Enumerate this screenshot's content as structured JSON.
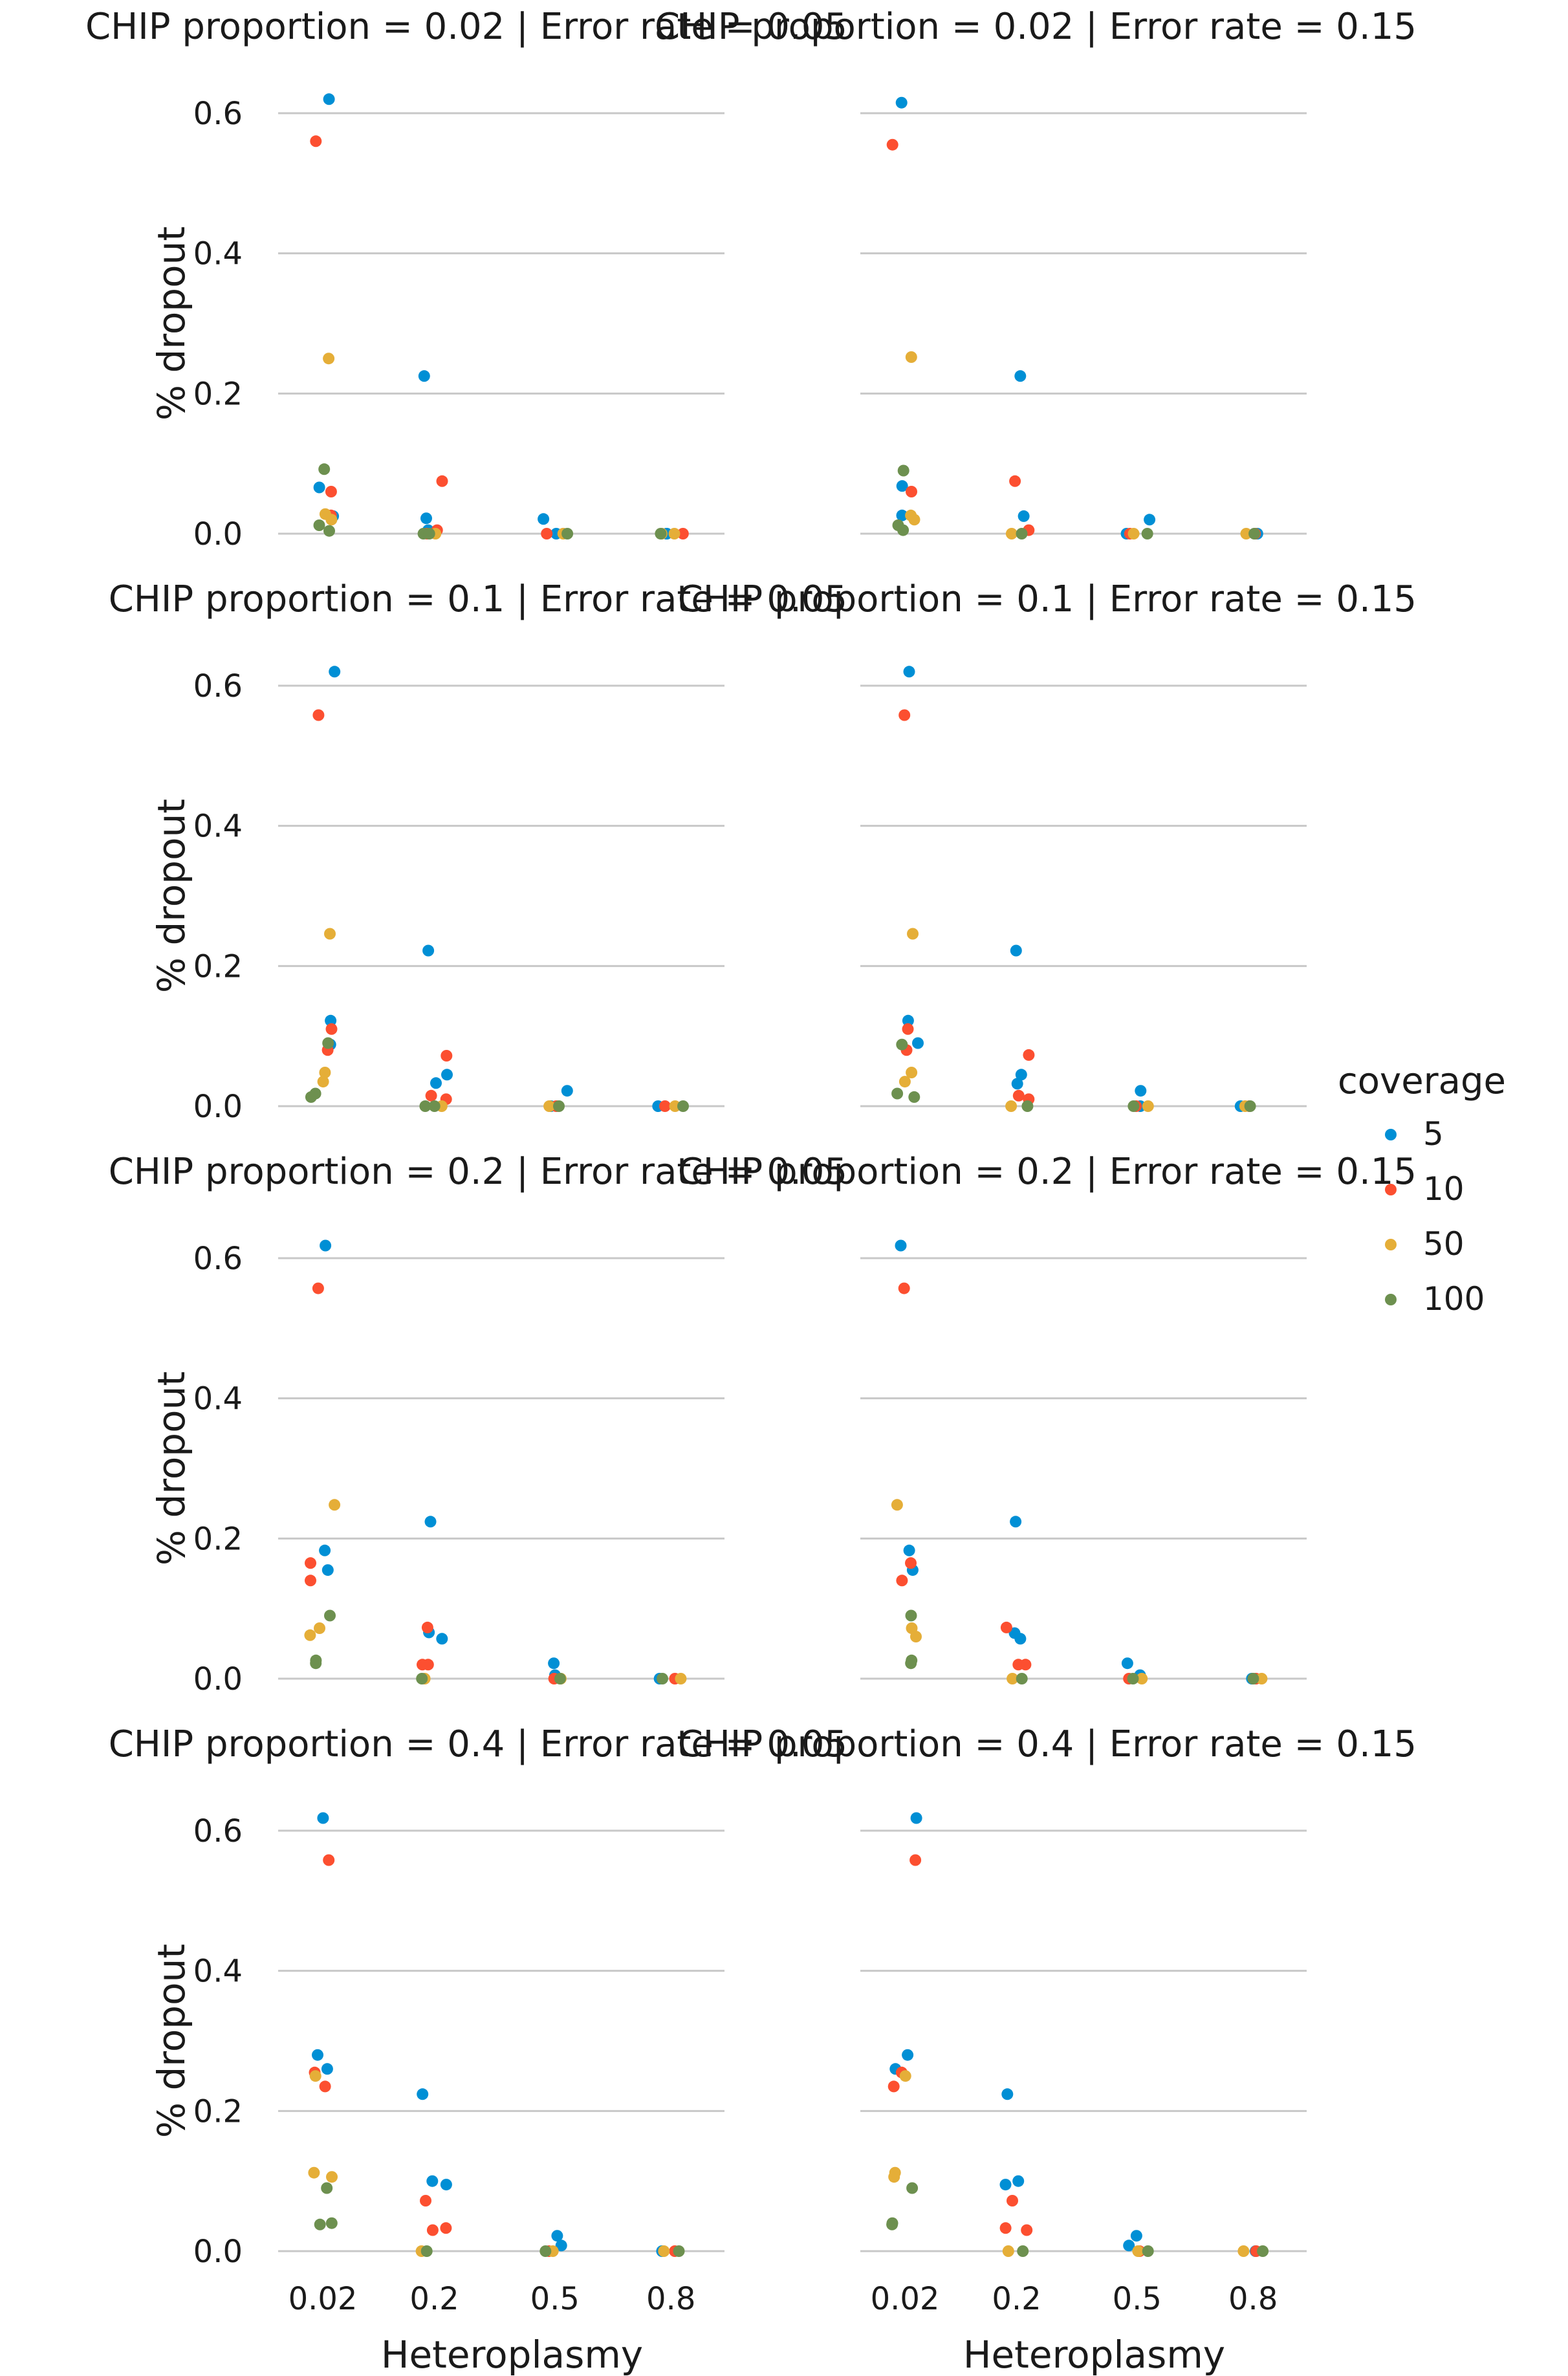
{
  "chart_data": {
    "type": "scatter",
    "y_label": "% dropout",
    "x_label": "Heteroplasmy",
    "categories": [
      "0.02",
      "0.2",
      "0.5",
      "0.8"
    ],
    "ylim": [
      0,
      0.62
    ],
    "y_ticks": [
      0.0,
      0.2,
      0.4,
      0.6
    ],
    "y_tick_labels": [
      "0.0",
      "0.2",
      "0.4",
      "0.6"
    ],
    "grid": "horizontal",
    "legend": {
      "title": "coverage",
      "placement": "right",
      "entries": [
        {
          "label": "5",
          "color": "#008fd5"
        },
        {
          "label": "10",
          "color": "#fc4f30"
        },
        {
          "label": "50",
          "color": "#e5ae38"
        },
        {
          "label": "100",
          "color": "#6d904f"
        }
      ]
    },
    "panels": [
      {
        "title": "CHIP proportion = 0.02 | Error rate = 0.05",
        "points": {
          "5": [
            [
              0,
              0.62
            ],
            [
              0,
              0.066
            ],
            [
              0,
              0.025
            ],
            [
              1,
              0.225
            ],
            [
              1,
              0.022
            ],
            [
              1,
              0.005
            ],
            [
              2,
              0.021
            ],
            [
              2,
              0.0
            ],
            [
              3,
              0.0
            ],
            [
              3,
              0.0
            ]
          ],
          "10": [
            [
              0,
              0.56
            ],
            [
              0,
              0.06
            ],
            [
              0,
              0.026
            ],
            [
              1,
              0.075
            ],
            [
              1,
              0.005
            ],
            [
              1,
              0.0
            ],
            [
              2,
              0.0
            ],
            [
              3,
              0.0
            ]
          ],
          "50": [
            [
              0,
              0.25
            ],
            [
              0,
              0.028
            ],
            [
              0,
              0.02
            ],
            [
              1,
              0.0
            ],
            [
              2,
              0.0
            ],
            [
              3,
              0.0
            ],
            [
              3,
              0.0
            ]
          ],
          "100": [
            [
              0,
              0.092
            ],
            [
              0,
              0.012
            ],
            [
              0,
              0.004
            ],
            [
              1,
              0.0
            ],
            [
              1,
              0.0
            ],
            [
              2,
              0.0
            ],
            [
              3,
              0.0
            ]
          ]
        }
      },
      {
        "title": "CHIP proportion = 0.02 | Error rate = 0.15",
        "points": {
          "5": [
            [
              0,
              0.615
            ],
            [
              0,
              0.068
            ],
            [
              0,
              0.026
            ],
            [
              1,
              0.225
            ],
            [
              1,
              0.025
            ],
            [
              2,
              0.02
            ],
            [
              2,
              0.0
            ],
            [
              3,
              0.0
            ]
          ],
          "10": [
            [
              0,
              0.555
            ],
            [
              0,
              0.06
            ],
            [
              1,
              0.075
            ],
            [
              1,
              0.005
            ],
            [
              2,
              0.0
            ],
            [
              3,
              0.0
            ]
          ],
          "50": [
            [
              0,
              0.252
            ],
            [
              0,
              0.026
            ],
            [
              0,
              0.02
            ],
            [
              1,
              0.0
            ],
            [
              2,
              0.0
            ],
            [
              3,
              0.0
            ]
          ],
          "100": [
            [
              0,
              0.09
            ],
            [
              0,
              0.012
            ],
            [
              0,
              0.005
            ],
            [
              1,
              0.0
            ],
            [
              2,
              0.0
            ],
            [
              3,
              0.0
            ]
          ]
        }
      },
      {
        "title": "CHIP proportion = 0.1 | Error rate = 0.05",
        "points": {
          "5": [
            [
              0,
              0.62
            ],
            [
              0,
              0.122
            ],
            [
              0,
              0.088
            ],
            [
              1,
              0.222
            ],
            [
              1,
              0.045
            ],
            [
              1,
              0.033
            ],
            [
              2,
              0.022
            ],
            [
              2,
              0.0
            ],
            [
              3,
              0.0
            ]
          ],
          "10": [
            [
              0,
              0.558
            ],
            [
              0,
              0.11
            ],
            [
              0,
              0.08
            ],
            [
              1,
              0.072
            ],
            [
              1,
              0.015
            ],
            [
              1,
              0.01
            ],
            [
              2,
              0.0
            ],
            [
              3,
              0.0
            ]
          ],
          "50": [
            [
              0,
              0.246
            ],
            [
              0,
              0.048
            ],
            [
              0,
              0.035
            ],
            [
              1,
              0.0
            ],
            [
              2,
              0.0
            ],
            [
              3,
              0.0
            ]
          ],
          "100": [
            [
              0,
              0.09
            ],
            [
              0,
              0.018
            ],
            [
              0,
              0.013
            ],
            [
              1,
              0.0
            ],
            [
              1,
              0.0
            ],
            [
              2,
              0.0
            ],
            [
              3,
              0.0
            ]
          ]
        }
      },
      {
        "title": "CHIP proportion = 0.1 | Error rate = 0.15",
        "points": {
          "5": [
            [
              0,
              0.62
            ],
            [
              0,
              0.122
            ],
            [
              0,
              0.09
            ],
            [
              1,
              0.222
            ],
            [
              1,
              0.045
            ],
            [
              1,
              0.032
            ],
            [
              2,
              0.022
            ],
            [
              2,
              0.0
            ],
            [
              3,
              0.0
            ]
          ],
          "10": [
            [
              0,
              0.558
            ],
            [
              0,
              0.11
            ],
            [
              0,
              0.08
            ],
            [
              1,
              0.073
            ],
            [
              1,
              0.015
            ],
            [
              1,
              0.01
            ],
            [
              2,
              0.0
            ],
            [
              3,
              0.0
            ]
          ],
          "50": [
            [
              0,
              0.246
            ],
            [
              0,
              0.048
            ],
            [
              0,
              0.035
            ],
            [
              1,
              0.0
            ],
            [
              2,
              0.0
            ],
            [
              3,
              0.0
            ]
          ],
          "100": [
            [
              0,
              0.088
            ],
            [
              0,
              0.018
            ],
            [
              0,
              0.013
            ],
            [
              1,
              0.0
            ],
            [
              2,
              0.0
            ],
            [
              3,
              0.0
            ]
          ]
        }
      },
      {
        "title": "CHIP proportion = 0.2 | Error rate = 0.05",
        "points": {
          "5": [
            [
              0,
              0.618
            ],
            [
              0,
              0.183
            ],
            [
              0,
              0.155
            ],
            [
              1,
              0.224
            ],
            [
              1,
              0.066
            ],
            [
              1,
              0.057
            ],
            [
              2,
              0.022
            ],
            [
              2,
              0.005
            ],
            [
              3,
              0.0
            ]
          ],
          "10": [
            [
              0,
              0.557
            ],
            [
              0,
              0.165
            ],
            [
              0,
              0.14
            ],
            [
              1,
              0.073
            ],
            [
              1,
              0.02
            ],
            [
              1,
              0.02
            ],
            [
              2,
              0.0
            ],
            [
              3,
              0.0
            ]
          ],
          "50": [
            [
              0,
              0.248
            ],
            [
              0,
              0.072
            ],
            [
              0,
              0.062
            ],
            [
              1,
              0.0
            ],
            [
              2,
              0.0
            ],
            [
              3,
              0.0
            ]
          ],
          "100": [
            [
              0,
              0.09
            ],
            [
              0,
              0.026
            ],
            [
              0,
              0.022
            ],
            [
              1,
              0.0
            ],
            [
              2,
              0.0
            ],
            [
              3,
              0.0
            ]
          ]
        }
      },
      {
        "title": "CHIP proportion = 0.2 | Error rate = 0.15",
        "points": {
          "5": [
            [
              0,
              0.618
            ],
            [
              0,
              0.183
            ],
            [
              0,
              0.155
            ],
            [
              1,
              0.224
            ],
            [
              1,
              0.065
            ],
            [
              1,
              0.057
            ],
            [
              2,
              0.022
            ],
            [
              2,
              0.005
            ],
            [
              3,
              0.0
            ]
          ],
          "10": [
            [
              0,
              0.557
            ],
            [
              0,
              0.165
            ],
            [
              0,
              0.14
            ],
            [
              1,
              0.073
            ],
            [
              1,
              0.02
            ],
            [
              1,
              0.02
            ],
            [
              2,
              0.0
            ],
            [
              3,
              0.0
            ]
          ],
          "50": [
            [
              0,
              0.248
            ],
            [
              0,
              0.072
            ],
            [
              0,
              0.06
            ],
            [
              1,
              0.0
            ],
            [
              2,
              0.0
            ],
            [
              3,
              0.0
            ]
          ],
          "100": [
            [
              0,
              0.09
            ],
            [
              0,
              0.026
            ],
            [
              0,
              0.022
            ],
            [
              1,
              0.0
            ],
            [
              2,
              0.0
            ],
            [
              3,
              0.0
            ]
          ]
        }
      },
      {
        "title": "CHIP proportion = 0.4 | Error rate = 0.05",
        "points": {
          "5": [
            [
              0,
              0.618
            ],
            [
              0,
              0.28
            ],
            [
              0,
              0.26
            ],
            [
              1,
              0.224
            ],
            [
              1,
              0.1
            ],
            [
              1,
              0.095
            ],
            [
              2,
              0.022
            ],
            [
              2,
              0.008
            ],
            [
              3,
              0.0
            ]
          ],
          "10": [
            [
              0,
              0.558
            ],
            [
              0,
              0.255
            ],
            [
              0,
              0.235
            ],
            [
              1,
              0.072
            ],
            [
              1,
              0.033
            ],
            [
              1,
              0.03
            ],
            [
              2,
              0.0
            ],
            [
              3,
              0.0
            ]
          ],
          "50": [
            [
              0,
              0.25
            ],
            [
              0,
              0.112
            ],
            [
              0,
              0.106
            ],
            [
              1,
              0.0
            ],
            [
              2,
              0.0
            ],
            [
              3,
              0.0
            ]
          ],
          "100": [
            [
              0,
              0.09
            ],
            [
              0,
              0.04
            ],
            [
              0,
              0.038
            ],
            [
              1,
              0.0
            ],
            [
              2,
              0.0
            ],
            [
              3,
              0.0
            ]
          ]
        }
      },
      {
        "title": "CHIP proportion = 0.4 | Error rate = 0.15",
        "points": {
          "5": [
            [
              0,
              0.618
            ],
            [
              0,
              0.28
            ],
            [
              0,
              0.26
            ],
            [
              1,
              0.224
            ],
            [
              1,
              0.1
            ],
            [
              1,
              0.095
            ],
            [
              2,
              0.022
            ],
            [
              2,
              0.008
            ],
            [
              3,
              0.0
            ]
          ],
          "10": [
            [
              0,
              0.558
            ],
            [
              0,
              0.255
            ],
            [
              0,
              0.235
            ],
            [
              1,
              0.072
            ],
            [
              1,
              0.033
            ],
            [
              1,
              0.03
            ],
            [
              2,
              0.0
            ],
            [
              3,
              0.0
            ]
          ],
          "50": [
            [
              0,
              0.25
            ],
            [
              0,
              0.112
            ],
            [
              0,
              0.106
            ],
            [
              1,
              0.0
            ],
            [
              2,
              0.0
            ],
            [
              3,
              0.0
            ]
          ],
          "100": [
            [
              0,
              0.09
            ],
            [
              0,
              0.04
            ],
            [
              0,
              0.038
            ],
            [
              1,
              0.0
            ],
            [
              2,
              0.0
            ],
            [
              3,
              0.0
            ]
          ]
        }
      }
    ]
  }
}
